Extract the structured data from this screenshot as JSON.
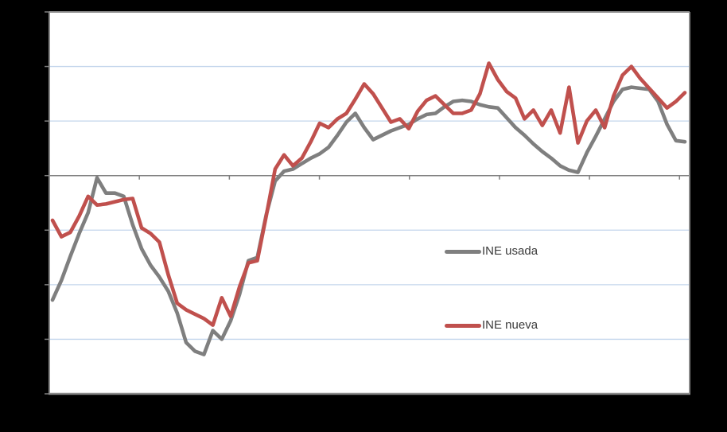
{
  "frame": {
    "background": "#000000"
  },
  "plot": {
    "background": "#FFFFFF",
    "border_color": "#8A8A8A",
    "gridline_color": "#C3D5EC",
    "zero_line_color": "#7F7F7F",
    "tick_color": "#7F7F7F"
  },
  "legend": {
    "text_color": "#3B3B3B",
    "items": [
      {
        "label": "INE usada"
      },
      {
        "label": "INE nueva"
      }
    ]
  },
  "chart_data": {
    "type": "line",
    "title": "",
    "xlabel": "",
    "ylabel": "",
    "axis_labels_visible": false,
    "grid": true,
    "legend_position": "inside-center-right",
    "ylim": [
      -20,
      15
    ],
    "y_gridline_step": 5,
    "zero_axis_highlighted": true,
    "x_tick_count": 8,
    "x_tick_step_frac": 0.1406,
    "series": [
      {
        "name": "INE usada",
        "color": "#7F7F7F",
        "values": [
          -11.4,
          -9.6,
          -7.4,
          -5.3,
          -3.4,
          -0.2,
          -1.6,
          -1.6,
          -1.9,
          -4.5,
          -6.7,
          -8.2,
          -9.3,
          -10.6,
          -12.6,
          -15.3,
          -16.1,
          -16.4,
          -14.2,
          -15.0,
          -13.3,
          -10.9,
          -7.8,
          -7.5,
          -3.6,
          -0.5,
          0.4,
          0.6,
          1.1,
          1.6,
          2.0,
          2.6,
          3.7,
          4.9,
          5.7,
          4.4,
          3.3,
          3.7,
          4.1,
          4.4,
          4.7,
          5.2,
          5.6,
          5.7,
          6.3,
          6.8,
          6.9,
          6.8,
          6.5,
          6.3,
          6.2,
          5.3,
          4.4,
          3.7,
          2.9,
          2.2,
          1.6,
          0.9,
          0.5,
          0.3,
          2.1,
          3.6,
          5.2,
          6.8,
          7.9,
          8.1,
          8.0,
          7.9,
          6.8,
          4.7,
          3.2,
          3.1
        ]
      },
      {
        "name": "INE nueva",
        "color": "#C0504D",
        "values": [
          -4.1,
          -5.6,
          -5.2,
          -3.7,
          -1.9,
          -2.7,
          -2.6,
          -2.4,
          -2.2,
          -2.1,
          -4.8,
          -5.3,
          -6.1,
          -9.1,
          -11.7,
          -12.3,
          -12.7,
          -13.1,
          -13.7,
          -11.2,
          -12.9,
          -10.2,
          -8.0,
          -7.8,
          -3.7,
          0.6,
          1.9,
          0.9,
          1.6,
          3.1,
          4.8,
          4.4,
          5.2,
          5.7,
          7.0,
          8.4,
          7.5,
          6.2,
          4.9,
          5.2,
          4.3,
          5.9,
          6.9,
          7.3,
          6.5,
          5.7,
          5.7,
          6.0,
          7.5,
          10.3,
          8.8,
          7.7,
          7.1,
          5.2,
          6.0,
          4.6,
          6.0,
          3.9,
          8.1,
          3.0,
          5.0,
          6.0,
          4.4,
          7.3,
          9.2,
          10.0,
          8.9,
          8.0,
          7.1,
          6.2,
          6.8,
          7.6
        ]
      }
    ]
  }
}
